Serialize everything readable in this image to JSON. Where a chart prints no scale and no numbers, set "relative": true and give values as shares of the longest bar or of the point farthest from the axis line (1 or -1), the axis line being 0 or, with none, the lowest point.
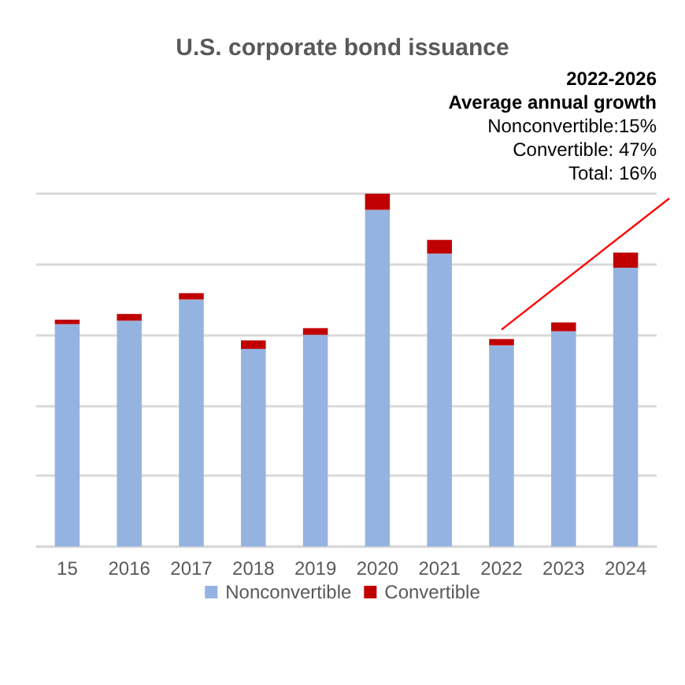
{
  "chart_data": {
    "type": "bar",
    "title": "U.S. corporate bond issuance",
    "relative": true,
    "stacked": true,
    "grid": "y",
    "legend": "bottom",
    "categories": [
      "15",
      "2016",
      "2017",
      "2018",
      "2019",
      "2020",
      "2021",
      "2022",
      "2023",
      "2024"
    ],
    "series": [
      {
        "name": "Nonconvertible",
        "color": "#95b3e0",
        "values": [
          0.63,
          0.64,
          0.7,
          0.56,
          0.6,
          0.954,
          0.83,
          0.57,
          0.61,
          0.79
        ]
      },
      {
        "name": "Convertible",
        "color": "#c00000",
        "values": [
          0.013,
          0.019,
          0.018,
          0.024,
          0.019,
          0.046,
          0.039,
          0.018,
          0.025,
          0.043
        ]
      }
    ],
    "annotations": [
      "2022-2026",
      "Average annual growth",
      "Nonconvertible:15%",
      "Convertible: 47%",
      "Total: 16%"
    ]
  }
}
